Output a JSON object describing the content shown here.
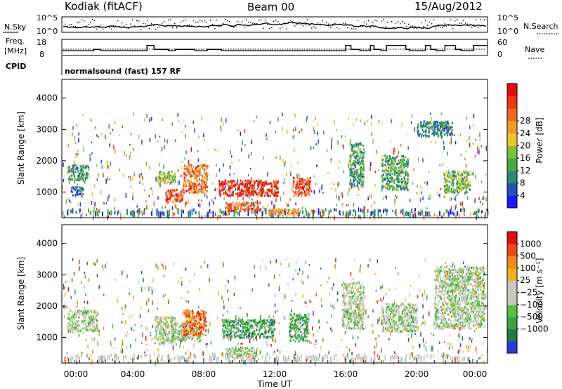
{
  "header": {
    "station": "Kodiak (fitACF)",
    "beam": "Beam 00",
    "date": "15/Aug/2012",
    "cpid_label": "CPID",
    "program": "normalsound (fast) 157 RF"
  },
  "chart_data": [
    {
      "type": "line",
      "name": "noise-panel",
      "left_label": "N.Sky",
      "left_ticks": [
        "10^5",
        "10^0"
      ],
      "right_label": "N.Search",
      "right_ticks": [
        "10^5",
        "10^0"
      ],
      "series": [
        {
          "name": "N.Sky"
        },
        {
          "name": "N.Search"
        }
      ]
    },
    {
      "type": "line",
      "name": "frequency-nave-panel",
      "left_label_line1": "Freq.",
      "left_label_line2": "[MHz]",
      "left_ticks": [
        "18",
        "8"
      ],
      "ylim_left": [
        8,
        18
      ],
      "right_label": "Nave",
      "right_ticks": [
        "60",
        "0"
      ],
      "ylim_right": [
        0,
        60
      ],
      "freq_series": {
        "name": "Freq.",
        "x_hours": [
          0,
          1.8,
          1.8,
          2.2,
          2.2,
          4.8,
          4.8,
          5.2,
          5.2,
          6.0,
          6.0,
          6.4,
          6.4,
          7.5,
          7.5,
          8.2,
          8.2,
          9.0,
          9.0,
          16.0,
          16.0,
          16.3,
          16.3,
          16.8,
          16.8,
          17.4,
          17.4,
          17.6,
          17.6,
          18.0,
          18.0,
          18.3,
          18.3,
          19.4,
          19.4,
          19.6,
          19.6,
          20.5,
          20.5,
          20.8,
          20.8,
          21.1,
          21.1,
          21.6,
          21.6,
          22.2,
          22.2,
          22.5,
          22.5,
          23.2,
          23.2,
          24.0
        ],
        "values_mhz": [
          10.5,
          10.5,
          11.5,
          11.5,
          10.5,
          10.5,
          14.5,
          14.5,
          11.5,
          11.5,
          10.5,
          10.5,
          11.5,
          11.5,
          10.5,
          10.5,
          11.5,
          11.5,
          10.5,
          10.5,
          14.5,
          14.5,
          11.5,
          11.5,
          10.5,
          10.5,
          14.5,
          14.5,
          11.5,
          11.5,
          10.5,
          10.5,
          14.5,
          14.5,
          11.5,
          11.5,
          10.5,
          10.5,
          14.5,
          14.5,
          11.5,
          11.5,
          10.5,
          10.5,
          14.5,
          14.5,
          11.5,
          11.5,
          10.5,
          10.5,
          14.5,
          14.5
        ]
      },
      "nave_series": {
        "name": "Nave",
        "level": 22
      }
    },
    {
      "type": "heatmap",
      "name": "power-panel",
      "ylabel": "Slant Range [km]",
      "yticks": [
        1000,
        2000,
        3000,
        4000
      ],
      "ylim": [
        180,
        4600
      ],
      "xlim_hours": [
        0,
        24
      ],
      "colorbar": {
        "label": "Power [dB]",
        "tick_labels": [
          "4",
          "8",
          "12",
          "16",
          "20",
          "24",
          "28"
        ],
        "colors": [
          "#1a1aff",
          "#2156b8",
          "#2e8a68",
          "#49a84a",
          "#7cc13a",
          "#e8c630",
          "#f29a28",
          "#f06a1e",
          "#ec3a16",
          "#e01010"
        ]
      },
      "regions": [
        {
          "h0": 0.3,
          "h1": 1.5,
          "r0": 1400,
          "r1": 1900,
          "level": 0.3
        },
        {
          "h0": 0.5,
          "h1": 1.2,
          "r0": 900,
          "r1": 1200,
          "level": 0.2
        },
        {
          "h0": 5.4,
          "h1": 6.4,
          "r0": 1300,
          "r1": 1700,
          "level": 0.45
        },
        {
          "h0": 5.8,
          "h1": 6.8,
          "r0": 700,
          "r1": 1100,
          "level": 0.85
        },
        {
          "h0": 6.8,
          "h1": 8.2,
          "r0": 1000,
          "r1": 1900,
          "level": 0.75
        },
        {
          "h0": 8.8,
          "h1": 12.2,
          "r0": 900,
          "r1": 1400,
          "level": 0.9
        },
        {
          "h0": 9.2,
          "h1": 11.2,
          "r0": 400,
          "r1": 700,
          "level": 0.8
        },
        {
          "h0": 11.6,
          "h1": 13.4,
          "r0": 300,
          "r1": 500,
          "level": 0.7
        },
        {
          "h0": 13.0,
          "h1": 14.0,
          "r0": 900,
          "r1": 1500,
          "level": 0.85
        },
        {
          "h0": 16.2,
          "h1": 17.0,
          "r0": 1200,
          "r1": 2600,
          "level": 0.3
        },
        {
          "h0": 18.0,
          "h1": 19.5,
          "r0": 1100,
          "r1": 2200,
          "level": 0.35
        },
        {
          "h0": 21.5,
          "h1": 23.0,
          "r0": 1000,
          "r1": 1700,
          "level": 0.4
        },
        {
          "h0": 20.0,
          "h1": 22.0,
          "r0": 2800,
          "r1": 3300,
          "level": 0.25
        }
      ]
    },
    {
      "type": "heatmap",
      "name": "velocity-panel",
      "ylabel": "Slant Range [km]",
      "yticks": [
        1000,
        2000,
        3000,
        4000
      ],
      "ylim": [
        180,
        4600
      ],
      "xlim_hours": [
        0,
        24
      ],
      "xtick_labels": [
        "00:00",
        "04:00",
        "08:00",
        "12:00",
        "16:00",
        "20:00",
        "00:00"
      ],
      "xtick_hours": [
        0,
        4,
        8,
        12,
        16,
        20,
        24
      ],
      "xlabel": "Time UT",
      "colorbar": {
        "label": "Velocity [m s⁻¹]",
        "tick_labels": [
          "1000",
          "500",
          "100",
          "25",
          "−25",
          "−100",
          "−500",
          "−1000"
        ],
        "colors": [
          "#2a3fcf",
          "#1f7a4a",
          "#3fa04a",
          "#57c23e",
          "#c8c8c0",
          "#c8c8c0",
          "#f0b21e",
          "#f08a1c",
          "#ec4a14",
          "#e01010"
        ]
      },
      "regions": [
        {
          "h0": 0.3,
          "h1": 2.0,
          "r0": 1200,
          "r1": 1900,
          "level": 0.45
        },
        {
          "h0": 5.2,
          "h1": 6.4,
          "r0": 800,
          "r1": 1700,
          "level": 0.45
        },
        {
          "h0": 6.2,
          "h1": 7.8,
          "r0": 900,
          "r1": 1500,
          "level": 0.45
        },
        {
          "h0": 6.8,
          "h1": 8.1,
          "r0": 1100,
          "r1": 1900,
          "level": 0.8
        },
        {
          "h0": 9.0,
          "h1": 12.0,
          "r0": 1000,
          "r1": 1600,
          "level": 0.25
        },
        {
          "h0": 9.2,
          "h1": 11.0,
          "r0": 400,
          "r1": 700,
          "level": 0.45
        },
        {
          "h0": 12.8,
          "h1": 13.9,
          "r0": 900,
          "r1": 1800,
          "level": 0.3
        },
        {
          "h0": 15.8,
          "h1": 17.0,
          "r0": 1300,
          "r1": 2800,
          "level": 0.45
        },
        {
          "h0": 18.0,
          "h1": 20.0,
          "r0": 1200,
          "r1": 2100,
          "level": 0.45
        },
        {
          "h0": 21.0,
          "h1": 23.8,
          "r0": 1300,
          "r1": 3300,
          "level": 0.45
        }
      ]
    }
  ]
}
